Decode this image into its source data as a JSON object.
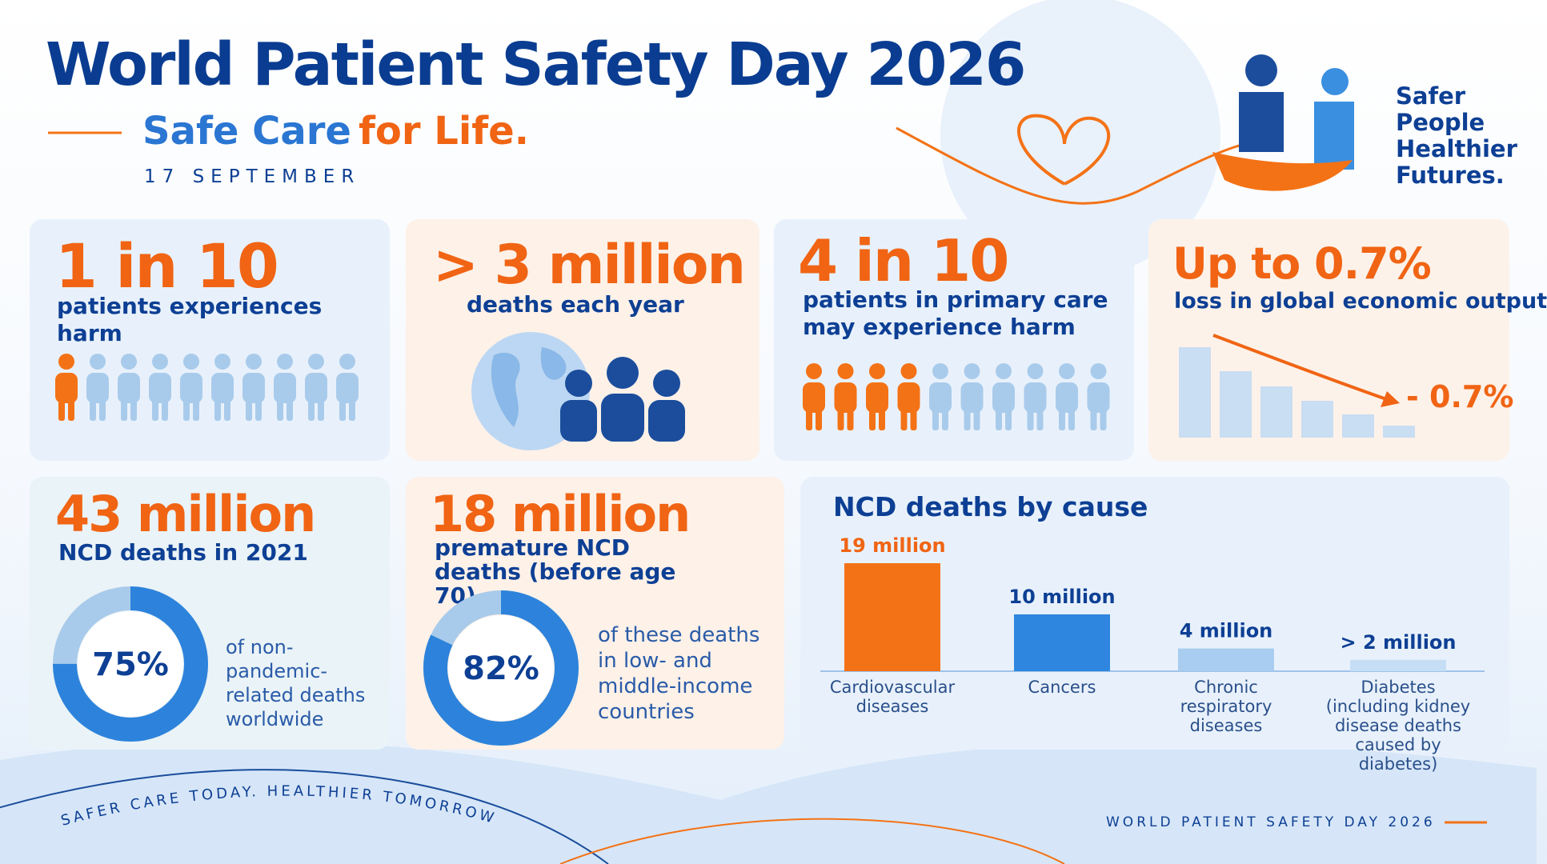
{
  "header": {
    "title": "World Patient Safety Day 2026",
    "subtitle_blue": "Safe Care",
    "subtitle_orange": "for Life.",
    "date": "17 SEPTEMBER"
  },
  "tagline": [
    "Safer",
    "People",
    "Healthier",
    "Futures."
  ],
  "stats": [
    {
      "headline": "1 in 10",
      "text": "patients experiences harm",
      "people": {
        "highlighted": 1,
        "total": 10
      }
    },
    {
      "headline": "> 3 million",
      "text": "deaths each year"
    },
    {
      "headline": "4 in 10",
      "text": "patients in primary care may experience harm",
      "people": {
        "highlighted": 4,
        "total": 10
      }
    },
    {
      "headline": "Up to 0.7%",
      "text": "loss in global economic output",
      "change_label": "- 0.7%"
    }
  ],
  "donuts": [
    {
      "headline": "43 million",
      "text": "NCD deaths in 2021",
      "value": 75,
      "value_label": "75%",
      "caption": "of non-pandemic-related deaths worldwide"
    },
    {
      "headline": "18 million",
      "text": "premature NCD deaths (before age 70)",
      "value": 82,
      "value_label": "82%",
      "caption": "of these deaths in low- and middle-income countries"
    }
  ],
  "chart_data": {
    "type": "bar",
    "title": "NCD deaths by cause",
    "categories": [
      "Cardiovascular diseases",
      "Cancers",
      "Chronic respiratory diseases",
      "Diabetes (including kidney disease deaths caused by diabetes)"
    ],
    "values": [
      19,
      10,
      4,
      2
    ],
    "value_labels": [
      "19 million",
      "10 million",
      "4 million",
      "> 2 million"
    ],
    "colors": [
      "#f47216",
      "#2f86de",
      "#a8cdf0",
      "#c6def5"
    ]
  },
  "footer": {
    "slogan": "SAFER CARE TODAY. HEALTHIER TOMORROW.",
    "brand": "WORLD PATIENT SAFETY DAY 2026"
  }
}
